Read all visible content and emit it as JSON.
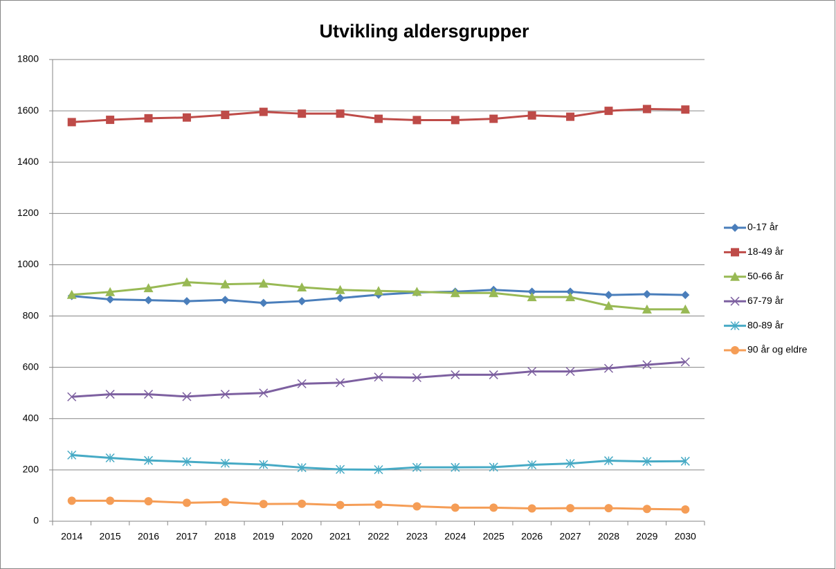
{
  "chart_data": {
    "type": "line",
    "title": "Utvikling aldersgrupper",
    "categories": [
      "2014",
      "2015",
      "2016",
      "2017",
      "2018",
      "2019",
      "2020",
      "2021",
      "2022",
      "2023",
      "2024",
      "2025",
      "2026",
      "2027",
      "2028",
      "2029",
      "2030"
    ],
    "series": [
      {
        "name": "0-17 år",
        "color": "#4a7ebb",
        "marker": "diamond",
        "values": [
          878,
          865,
          862,
          858,
          863,
          851,
          858,
          870,
          883,
          892,
          895,
          902,
          895,
          895,
          882,
          885,
          882
        ]
      },
      {
        "name": "18-49 år",
        "color": "#be4b48",
        "marker": "square",
        "values": [
          1556,
          1565,
          1571,
          1574,
          1584,
          1596,
          1589,
          1589,
          1569,
          1564,
          1564,
          1569,
          1582,
          1577,
          1600,
          1607,
          1605
        ]
      },
      {
        "name": "50-66 år",
        "color": "#98b954",
        "marker": "triangle",
        "values": [
          883,
          894,
          909,
          932,
          924,
          927,
          912,
          902,
          898,
          895,
          890,
          890,
          874,
          874,
          840,
          826,
          826
        ]
      },
      {
        "name": "67-79 år",
        "color": "#7d60a0",
        "marker": "x",
        "values": [
          485,
          495,
          495,
          486,
          495,
          500,
          536,
          540,
          562,
          560,
          571,
          571,
          584,
          584,
          596,
          610,
          621
        ]
      },
      {
        "name": "80-89 år",
        "color": "#46aac5",
        "marker": "star",
        "values": [
          258,
          247,
          237,
          232,
          226,
          221,
          209,
          202,
          201,
          210,
          210,
          211,
          220,
          225,
          236,
          233,
          234
        ]
      },
      {
        "name": "90 år og eldre",
        "color": "#f59d56",
        "marker": "circle",
        "values": [
          80,
          80,
          78,
          72,
          75,
          67,
          68,
          63,
          65,
          58,
          53,
          53,
          50,
          51,
          51,
          48,
          46
        ]
      }
    ],
    "ylim": [
      0,
      1800
    ],
    "yticks": [
      0,
      200,
      400,
      600,
      800,
      1000,
      1200,
      1400,
      1600,
      1800
    ],
    "grid": true,
    "legend": "right"
  }
}
